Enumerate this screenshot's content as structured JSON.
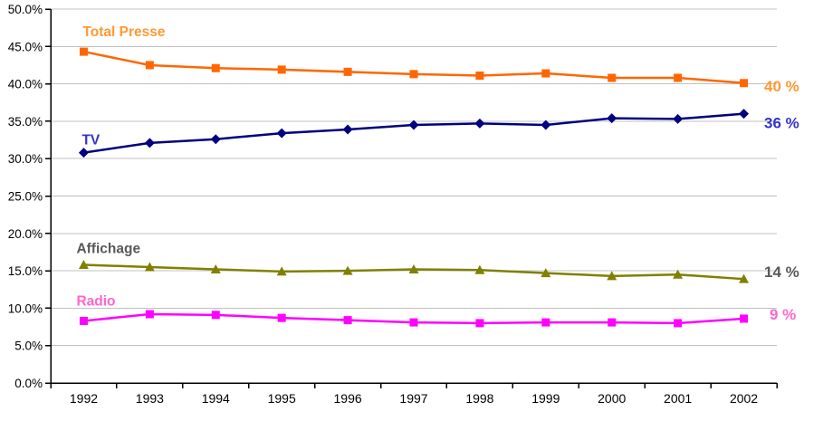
{
  "chart_data": {
    "type": "line",
    "title": "",
    "xlabel": "",
    "ylabel": "",
    "x": [
      "1992",
      "1993",
      "1994",
      "1995",
      "1996",
      "1997",
      "1998",
      "1999",
      "2000",
      "2001",
      "2002"
    ],
    "series": [
      {
        "name": "Total Presse",
        "values": [
          44.3,
          42.5,
          42.1,
          41.9,
          41.6,
          41.3,
          41.1,
          41.4,
          40.8,
          40.8,
          40.1
        ],
        "color": "#FF6600",
        "label_color": "#FF9933",
        "marker": "square",
        "end_label": "40 %"
      },
      {
        "name": "TV",
        "values": [
          30.8,
          32.1,
          32.6,
          33.4,
          33.9,
          34.5,
          34.7,
          34.5,
          35.4,
          35.3,
          36.0
        ],
        "color": "#000080",
        "label_color": "#3333CC",
        "marker": "diamond",
        "end_label": "36 %"
      },
      {
        "name": "Affichage",
        "values": [
          15.8,
          15.5,
          15.2,
          14.9,
          15.0,
          15.2,
          15.1,
          14.7,
          14.3,
          14.5,
          13.9
        ],
        "color": "#808000",
        "label_color": "#595959",
        "marker": "triangle",
        "end_label": "14 %"
      },
      {
        "name": "Radio",
        "values": [
          8.3,
          9.2,
          9.1,
          8.7,
          8.4,
          8.1,
          8.0,
          8.1,
          8.1,
          8.0,
          8.6
        ],
        "color": "#FF00FF",
        "label_color": "#FF66CC",
        "marker": "square",
        "end_label": "9 %"
      }
    ],
    "ylim": [
      0,
      50
    ],
    "ytick_step": 5,
    "ytick_labels": [
      "0.0%",
      "5.0%",
      "10.0%",
      "15.0%",
      "20.0%",
      "25.0%",
      "30.0%",
      "35.0%",
      "40.0%",
      "45.0%",
      "50.0%"
    ],
    "grid": true,
    "gridline_color": "#C0C0C0",
    "axis_color": "#000000",
    "tick_label_color": "#000000",
    "legend_position": "inline-labels"
  }
}
